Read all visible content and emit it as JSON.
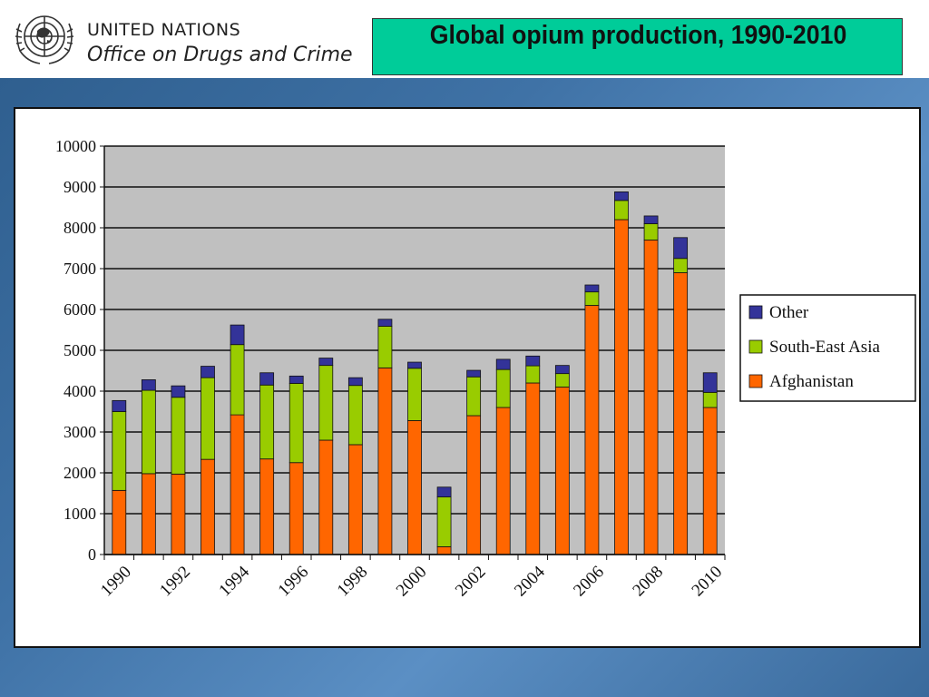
{
  "header": {
    "org_name": "UNITED NATIONS",
    "org_office": "Office on Drugs and Crime",
    "logo_icon": "un-emblem-icon"
  },
  "colors": {
    "title_box": "#00cc99",
    "plot_area": "#c0c0c0",
    "afghanistan": "#ff6600",
    "south_east_asia": "#99cc00",
    "other": "#333399"
  },
  "chart_data": {
    "type": "bar",
    "stacked": true,
    "title": "Global opium production, 1990-2010",
    "xlabel": "",
    "ylabel": "",
    "ylim": [
      0,
      10000
    ],
    "yticks": [
      0,
      1000,
      2000,
      3000,
      4000,
      5000,
      6000,
      7000,
      8000,
      9000,
      10000
    ],
    "xtick_labels": [
      "1990",
      "1992",
      "1994",
      "1996",
      "1998",
      "2000",
      "2002",
      "2004",
      "2006",
      "2008",
      "2010"
    ],
    "categories": [
      "1990",
      "1991",
      "1992",
      "1993",
      "1994",
      "1995",
      "1996",
      "1997",
      "1998",
      "1999",
      "2000",
      "2001",
      "2002",
      "2003",
      "2004",
      "2005",
      "2006",
      "2007",
      "2008",
      "2009",
      "2010"
    ],
    "grid": true,
    "legend_position": "right",
    "series": [
      {
        "name": "Afghanistan",
        "color": "#ff6600",
        "values": [
          1570,
          1980,
          1970,
          2330,
          3420,
          2340,
          2250,
          2800,
          2690,
          4570,
          3280,
          190,
          3400,
          3600,
          4200,
          4100,
          6100,
          8200,
          7700,
          6900,
          3600
        ]
      },
      {
        "name": "South-East Asia",
        "color": "#99cc00",
        "values": [
          1930,
          2040,
          1880,
          2000,
          1720,
          1810,
          1940,
          1830,
          1450,
          1020,
          1280,
          1220,
          950,
          930,
          420,
          330,
          330,
          470,
          400,
          350,
          370
        ]
      },
      {
        "name": "Other",
        "color": "#333399",
        "values": [
          270,
          260,
          280,
          280,
          480,
          300,
          180,
          180,
          190,
          170,
          150,
          240,
          160,
          250,
          240,
          200,
          170,
          210,
          190,
          510,
          480
        ]
      }
    ]
  }
}
